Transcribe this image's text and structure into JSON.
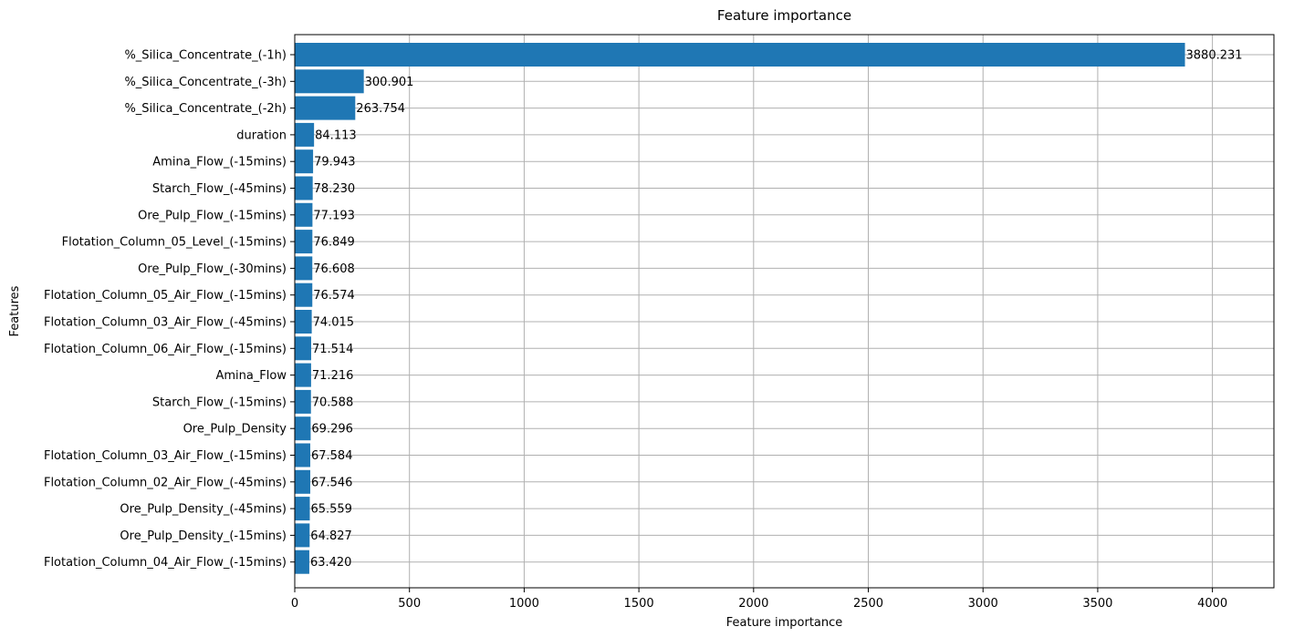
{
  "chart_data": {
    "type": "bar",
    "orientation": "horizontal",
    "title": "Feature importance",
    "xlabel": "Feature importance",
    "ylabel": "Features",
    "xlim": [
      0,
      4268
    ],
    "xticks": [
      0,
      500,
      1000,
      1500,
      2000,
      2500,
      3000,
      3500,
      4000
    ],
    "grid": true,
    "bar_color": "#1f77b4",
    "categories": [
      "%_Silica_Concentrate_(-1h)",
      "%_Silica_Concentrate_(-3h)",
      "%_Silica_Concentrate_(-2h)",
      "duration",
      "Amina_Flow_(-15mins)",
      "Starch_Flow_(-45mins)",
      "Ore_Pulp_Flow_(-15mins)",
      "Flotation_Column_05_Level_(-15mins)",
      "Ore_Pulp_Flow_(-30mins)",
      "Flotation_Column_05_Air_Flow_(-15mins)",
      "Flotation_Column_03_Air_Flow_(-45mins)",
      "Flotation_Column_06_Air_Flow_(-15mins)",
      "Amina_Flow",
      "Starch_Flow_(-15mins)",
      "Ore_Pulp_Density",
      "Flotation_Column_03_Air_Flow_(-15mins)",
      "Flotation_Column_02_Air_Flow_(-45mins)",
      "Ore_Pulp_Density_(-45mins)",
      "Ore_Pulp_Density_(-15mins)",
      "Flotation_Column_04_Air_Flow_(-15mins)"
    ],
    "values": [
      3880.231,
      300.901,
      263.754,
      84.113,
      79.943,
      78.23,
      77.193,
      76.849,
      76.608,
      76.574,
      74.015,
      71.514,
      71.216,
      70.588,
      69.296,
      67.584,
      67.546,
      65.559,
      64.827,
      63.42
    ],
    "value_labels": [
      "3880.231",
      "300.901",
      "263.754",
      "84.113",
      "79.943",
      "78.230",
      "77.193",
      "76.849",
      "76.608",
      "76.574",
      "74.015",
      "71.514",
      "71.216",
      "70.588",
      "69.296",
      "67.584",
      "67.546",
      "65.559",
      "64.827",
      "63.420"
    ]
  }
}
